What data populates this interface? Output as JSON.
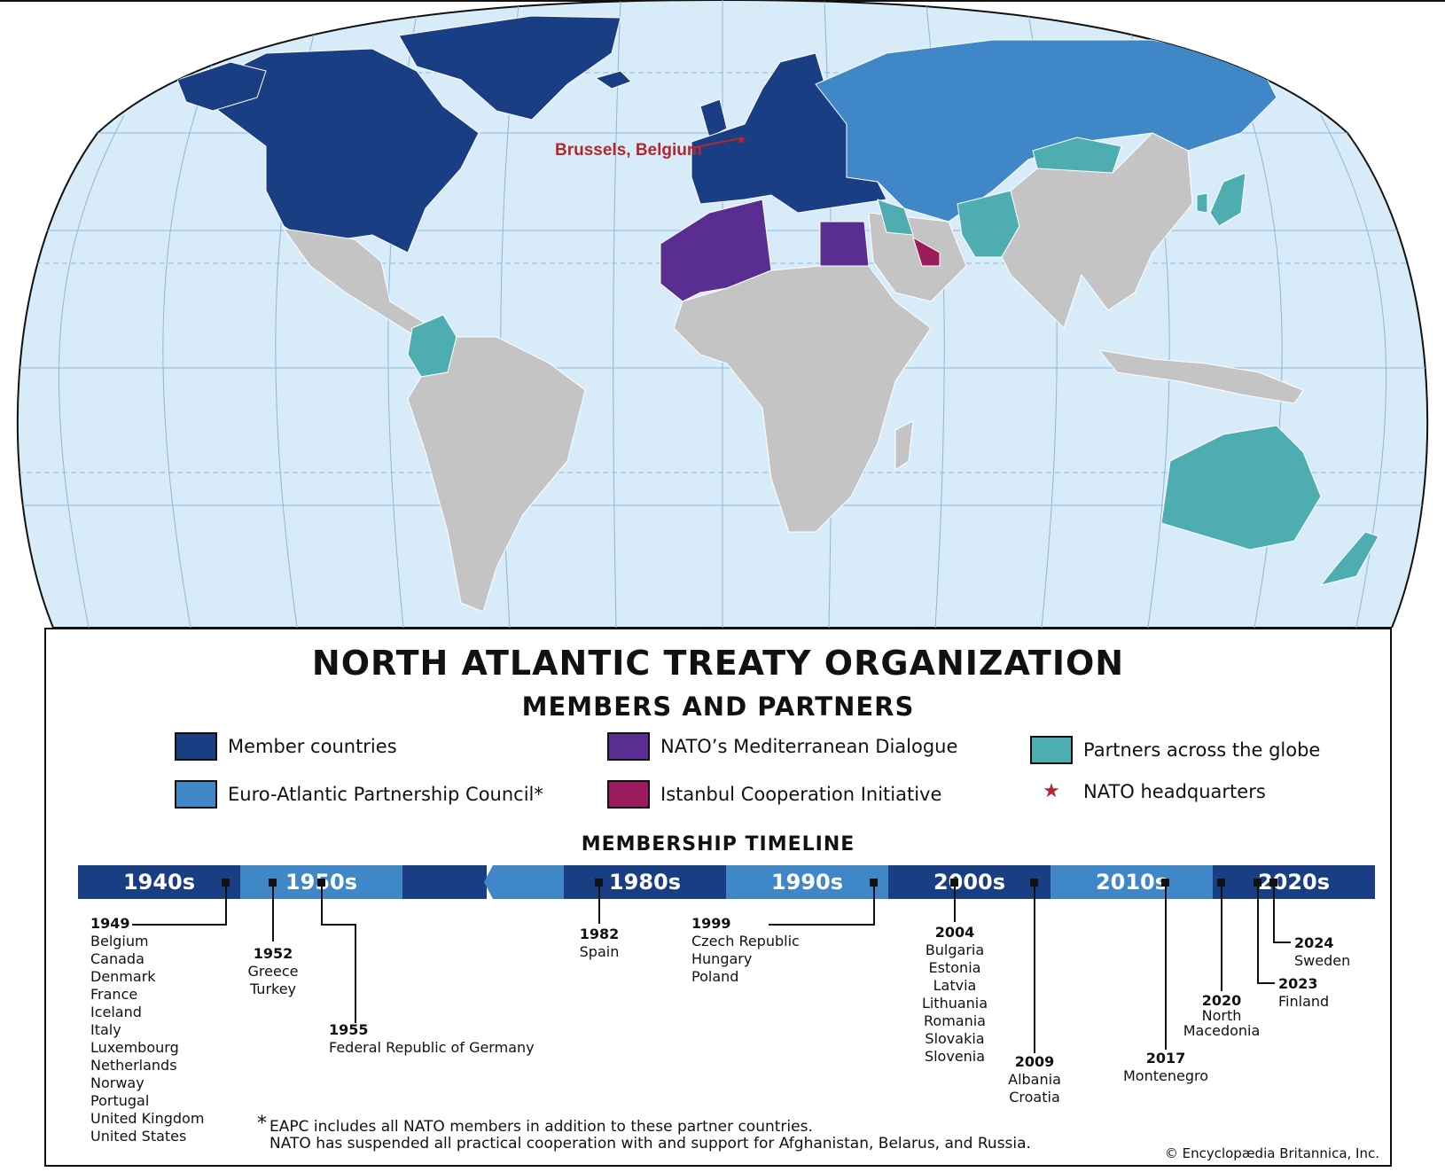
{
  "map": {
    "hq_label": "Brussels, Belgium",
    "colors": {
      "ocean": "#d7ecf8",
      "grid": "#8ab8db",
      "member": "#1a3e84",
      "eapc": "#3f87c6",
      "mediterranean": "#5a2d91",
      "istanbul": "#9b1c5c",
      "global": "#4dadb0",
      "other": "#c4c4c4",
      "hq": "#b3272d"
    }
  },
  "titles": {
    "main": "NORTH ATLANTIC TREATY ORGANIZATION",
    "sub": "MEMBERS AND PARTNERS",
    "timeline": "MEMBERSHIP TIMELINE"
  },
  "legend": [
    {
      "label": "Member countries",
      "color": "#1a3e84"
    },
    {
      "label": "Euro-Atlantic Partnership Council*",
      "color": "#3f87c6"
    },
    {
      "label": "NATO’s Mediterranean Dialogue",
      "color": "#5a2d91"
    },
    {
      "label": "Istanbul Cooperation Initiative",
      "color": "#9b1c5c"
    },
    {
      "label": "Partners across the globe",
      "color": "#4dadb0"
    },
    {
      "label": "NATO headquarters",
      "icon": "star-icon"
    }
  ],
  "decades": [
    "1940s",
    "1950s",
    "1980s",
    "1990s",
    "2000s",
    "2010s",
    "2020s"
  ],
  "timeline": [
    {
      "year": "1949",
      "countries": [
        "Belgium",
        "Canada",
        "Denmark",
        "France",
        "Iceland",
        "Italy",
        "Luxembourg",
        "Netherlands",
        "Norway",
        "Portugal",
        "United Kingdom",
        "United States"
      ]
    },
    {
      "year": "1952",
      "countries": [
        "Greece",
        "Turkey"
      ]
    },
    {
      "year": "1955",
      "countries": [
        "Federal Republic of Germany"
      ]
    },
    {
      "year": "1982",
      "countries": [
        "Spain"
      ]
    },
    {
      "year": "1999",
      "countries": [
        "Czech Republic",
        "Hungary",
        "Poland"
      ]
    },
    {
      "year": "2004",
      "countries": [
        "Bulgaria",
        "Estonia",
        "Latvia",
        "Lithuania",
        "Romania",
        "Slovakia",
        "Slovenia"
      ]
    },
    {
      "year": "2009",
      "countries": [
        "Albania",
        "Croatia"
      ]
    },
    {
      "year": "2017",
      "countries": [
        "Montenegro"
      ]
    },
    {
      "year": "2020",
      "countries": [
        "North",
        "Macedonia"
      ]
    },
    {
      "year": "2023",
      "countries": [
        "Finland"
      ]
    },
    {
      "year": "2024",
      "countries": [
        "Sweden"
      ]
    }
  ],
  "footnote": {
    "asterisk": "*",
    "line1": "EAPC includes all NATO members in addition to these partner countries.",
    "line2": "NATO has suspended all practical cooperation with and support for Afghanistan, Belarus, and Russia."
  },
  "copyright": "© Encyclopædia Britannica, Inc."
}
